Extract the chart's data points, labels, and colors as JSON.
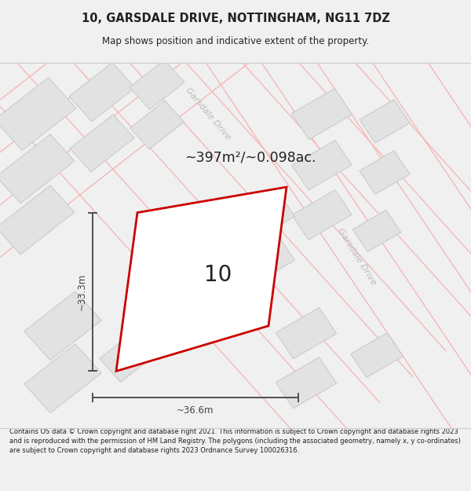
{
  "title_line1": "10, GARSDALE DRIVE, NOTTINGHAM, NG11 7DZ",
  "title_line2": "Map shows position and indicative extent of the property.",
  "footer_text": "Contains OS data © Crown copyright and database right 2021. This information is subject to Crown copyright and database rights 2023 and is reproduced with the permission of HM Land Registry. The polygons (including the associated geometry, namely x, y co-ordinates) are subject to Crown copyright and database rights 2023 Ordnance Survey 100026316.",
  "area_label": "~397m²/~0.098ac.",
  "property_number": "10",
  "dim_width": "~36.6m",
  "dim_height": "~33.3m",
  "road_label_top": "Garsdale Drive",
  "road_label_right": "Garsdale Drive",
  "map_bg": "#ffffff",
  "block_fill": "#e2e2e2",
  "block_stroke": "#c8c8c8",
  "road_line_color": "#f5b8b8",
  "property_fill": "#ffffff",
  "property_stroke": "#cc0000",
  "dim_color": "#444444",
  "text_color": "#222222",
  "road_text_color": "#bbbbbb",
  "bg_color": "#f0f0f0"
}
